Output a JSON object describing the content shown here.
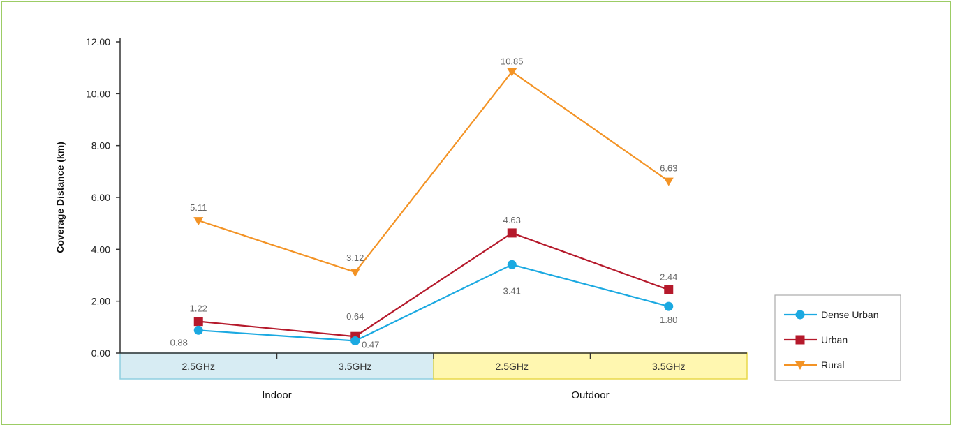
{
  "chart_data": {
    "type": "line",
    "ylabel": "Coverage Distance (km)",
    "ylim": [
      0,
      12
    ],
    "yticks": [
      "0.00",
      "2.00",
      "4.00",
      "6.00",
      "8.00",
      "10.00",
      "12.00"
    ],
    "categories": [
      "2.5GHz",
      "3.5GHz",
      "2.5GHz",
      "3.5GHz"
    ],
    "groups": [
      "Indoor",
      "Outdoor"
    ],
    "legend_position": "right",
    "series": [
      {
        "name": "Dense Urban",
        "color": "#1ba9e1",
        "marker": "circle",
        "values": [
          0.88,
          0.47,
          3.41,
          1.8
        ],
        "labels": [
          "0.88",
          "0.47",
          "3.41",
          "1.80"
        ]
      },
      {
        "name": "Urban",
        "color": "#b5192b",
        "marker": "square",
        "values": [
          1.22,
          0.64,
          4.63,
          2.44
        ],
        "labels": [
          "1.22",
          "0.64",
          "4.63",
          "2.44"
        ]
      },
      {
        "name": "Rural",
        "color": "#f39325",
        "marker": "triangle-down",
        "values": [
          5.11,
          3.12,
          10.85,
          6.63
        ],
        "labels": [
          "5.11",
          "3.12",
          "10.85",
          "6.63"
        ]
      }
    ]
  }
}
